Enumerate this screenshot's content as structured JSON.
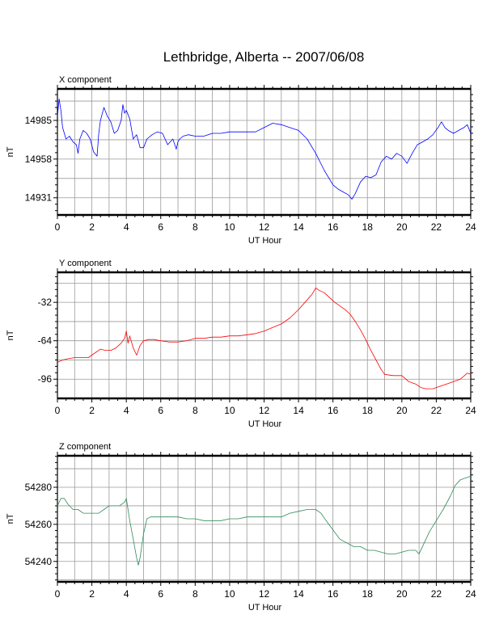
{
  "page": {
    "title": "Lethbridge, Alberta -- 2007/06/08"
  },
  "chart_data": [
    {
      "type": "line",
      "component_label": "X component",
      "xlabel": "UT Hour",
      "ylabel": "nT",
      "xlim": [
        0,
        24
      ],
      "ylim": [
        14919,
        15007
      ],
      "xticks": [
        0,
        2,
        4,
        6,
        8,
        10,
        12,
        14,
        16,
        18,
        20,
        22,
        24
      ],
      "xtick_labels": [
        "0",
        "2",
        "4",
        "6",
        "8",
        "10",
        "12",
        "14",
        "16",
        "18",
        "20",
        "22",
        "24"
      ],
      "yticks": [
        14931,
        14958,
        14985
      ],
      "ytick_labels": [
        "14931",
        "14958",
        "14985"
      ],
      "grid": true,
      "series": [
        {
          "color": "#0000ff",
          "x": [
            0,
            0.1,
            0.2,
            0.3,
            0.5,
            0.7,
            0.9,
            1.1,
            1.2,
            1.3,
            1.5,
            1.7,
            1.9,
            2.1,
            2.3,
            2.4,
            2.5,
            2.7,
            2.9,
            3.1,
            3.3,
            3.5,
            3.7,
            3.8,
            3.9,
            4.0,
            4.2,
            4.4,
            4.6,
            4.8,
            5.0,
            5.2,
            5.5,
            5.8,
            6.1,
            6.4,
            6.7,
            6.9,
            7.0,
            7.1,
            7.3,
            7.6,
            8.0,
            8.5,
            9.0,
            9.5,
            10.0,
            10.5,
            11.0,
            11.5,
            12.0,
            12.5,
            13.0,
            13.5,
            14.0,
            14.5,
            15.0,
            15.5,
            16.0,
            16.3,
            16.6,
            16.9,
            17.1,
            17.3,
            17.6,
            17.9,
            18.2,
            18.5,
            18.8,
            19.1,
            19.4,
            19.7,
            20.0,
            20.3,
            20.6,
            20.9,
            21.2,
            21.5,
            21.8,
            22.1,
            22.3,
            22.5,
            22.7,
            23.0,
            23.3,
            23.6,
            23.8,
            24.0
          ],
          "values": [
            14988,
            15000,
            14992,
            14980,
            14972,
            14974,
            14970,
            14968,
            14962,
            14972,
            14978,
            14976,
            14972,
            14963,
            14960,
            14976,
            14985,
            14994,
            14988,
            14984,
            14976,
            14978,
            14985,
            14996,
            14990,
            14992,
            14986,
            14972,
            14975,
            14966,
            14966,
            14972,
            14975,
            14977,
            14976,
            14968,
            14972,
            14965,
            14970,
            14972,
            14974,
            14975,
            14974,
            14974,
            14976,
            14976,
            14977,
            14977,
            14977,
            14977,
            14980,
            14983,
            14982,
            14980,
            14978,
            14972,
            14962,
            14950,
            14940,
            14937,
            14935,
            14933,
            14930,
            14934,
            14942,
            14946,
            14945,
            14947,
            14956,
            14960,
            14958,
            14962,
            14960,
            14955,
            14962,
            14968,
            14970,
            14972,
            14975,
            14980,
            14984,
            14980,
            14978,
            14976,
            14978,
            14980,
            14982,
            14976
          ]
        }
      ]
    },
    {
      "type": "line",
      "component_label": "Y component",
      "xlabel": "UT Hour",
      "ylabel": "nT",
      "xlim": [
        0,
        24
      ],
      "ylim": [
        -112,
        -7
      ],
      "xticks": [
        0,
        2,
        4,
        6,
        8,
        10,
        12,
        14,
        16,
        18,
        20,
        22,
        24
      ],
      "xtick_labels": [
        "0",
        "2",
        "4",
        "6",
        "8",
        "10",
        "12",
        "14",
        "16",
        "18",
        "20",
        "22",
        "24"
      ],
      "yticks": [
        -96,
        -64,
        -32
      ],
      "ytick_labels": [
        "-96",
        "-64",
        "-32"
      ],
      "grid": true,
      "series": [
        {
          "color": "#ff0000",
          "x": [
            0,
            0.3,
            0.6,
            1.0,
            1.4,
            1.8,
            2.2,
            2.5,
            2.8,
            3.1,
            3.4,
            3.7,
            3.9,
            4.0,
            4.1,
            4.2,
            4.4,
            4.6,
            4.8,
            5.0,
            5.3,
            5.6,
            6.0,
            6.5,
            7.0,
            7.5,
            8.0,
            8.5,
            9.0,
            9.5,
            10.0,
            10.5,
            11.0,
            11.5,
            12.0,
            12.5,
            13.0,
            13.5,
            14.0,
            14.5,
            14.8,
            15.0,
            15.2,
            15.5,
            15.8,
            16.1,
            16.4,
            16.7,
            17.0,
            17.3,
            17.6,
            17.9,
            18.2,
            18.5,
            18.8,
            19.0,
            19.5,
            20.0,
            20.4,
            20.8,
            21.1,
            21.4,
            21.8,
            22.2,
            22.6,
            23.0,
            23.4,
            23.8,
            24.0
          ],
          "values": [
            -82,
            -80,
            -79,
            -78,
            -78,
            -78,
            -74,
            -71,
            -72,
            -72,
            -70,
            -66,
            -62,
            -56,
            -66,
            -60,
            -70,
            -76,
            -68,
            -64,
            -63,
            -63,
            -64,
            -65,
            -65,
            -64,
            -62,
            -62,
            -61,
            -61,
            -60,
            -60,
            -59,
            -58,
            -56,
            -53,
            -50,
            -45,
            -38,
            -30,
            -25,
            -20,
            -22,
            -24,
            -28,
            -32,
            -35,
            -38,
            -42,
            -48,
            -55,
            -63,
            -72,
            -80,
            -88,
            -92,
            -93,
            -93,
            -98,
            -100,
            -103,
            -104,
            -104,
            -102,
            -100,
            -98,
            -96,
            -91,
            -92
          ]
        }
      ]
    },
    {
      "type": "line",
      "component_label": "Z component",
      "xlabel": "UT Hour",
      "ylabel": "nT",
      "xlim": [
        0,
        24
      ],
      "ylim": [
        54229,
        54297
      ],
      "xticks": [
        0,
        2,
        4,
        6,
        8,
        10,
        12,
        14,
        16,
        18,
        20,
        22,
        24
      ],
      "xtick_labels": [
        "0",
        "2",
        "4",
        "6",
        "8",
        "10",
        "12",
        "14",
        "16",
        "18",
        "20",
        "22",
        "24"
      ],
      "yticks": [
        54240,
        54260,
        54280
      ],
      "ytick_labels": [
        "54240",
        "54260",
        "54280"
      ],
      "grid": true,
      "series": [
        {
          "color": "#2e8b57",
          "x": [
            0,
            0.2,
            0.4,
            0.6,
            0.9,
            1.2,
            1.5,
            1.8,
            2.1,
            2.4,
            2.7,
            3.0,
            3.3,
            3.6,
            3.9,
            4.0,
            4.2,
            4.4,
            4.6,
            4.7,
            4.8,
            5.0,
            5.2,
            5.4,
            5.7,
            6.0,
            6.5,
            7.0,
            7.5,
            8.0,
            8.5,
            9.0,
            9.5,
            10.0,
            10.5,
            11.0,
            11.5,
            12.0,
            12.5,
            13.0,
            13.5,
            14.0,
            14.5,
            15.0,
            15.3,
            15.6,
            16.0,
            16.4,
            16.8,
            17.2,
            17.6,
            18.0,
            18.4,
            18.8,
            19.2,
            19.6,
            20.0,
            20.4,
            20.8,
            21.0,
            21.3,
            21.6,
            22.0,
            22.4,
            22.8,
            23.1,
            23.4,
            23.7,
            24.0
          ],
          "values": [
            54270,
            54274,
            54274,
            54271,
            54268,
            54268,
            54266,
            54266,
            54266,
            54266,
            54268,
            54270,
            54270,
            54270,
            54272,
            54274,
            54262,
            54252,
            54242,
            54238,
            54242,
            54255,
            54263,
            54264,
            54264,
            54264,
            54264,
            54264,
            54263,
            54263,
            54262,
            54262,
            54262,
            54263,
            54263,
            54264,
            54264,
            54264,
            54264,
            54264,
            54266,
            54267,
            54268,
            54268,
            54266,
            54262,
            54257,
            54252,
            54250,
            54248,
            54248,
            54246,
            54246,
            54245,
            54244,
            54244,
            54245,
            54246,
            54246,
            54244,
            54250,
            54256,
            54262,
            54268,
            54275,
            54281,
            54284,
            54285,
            54286
          ]
        }
      ]
    }
  ]
}
